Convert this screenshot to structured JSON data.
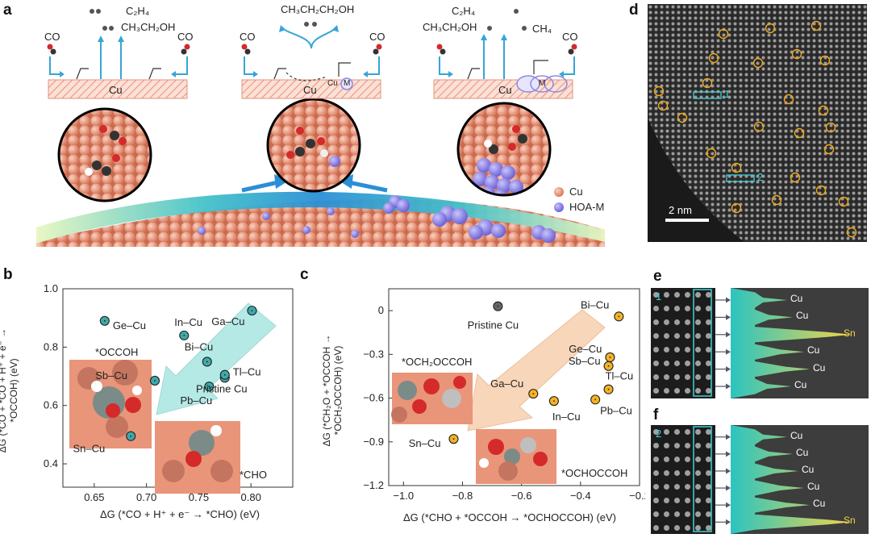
{
  "panel_labels": {
    "a": "a",
    "b": "b",
    "c": "c",
    "d": "d",
    "e": "e",
    "f": "f"
  },
  "panel_a": {
    "left": {
      "products_top": "C₂H₄",
      "products_mid": "CH₃CH₂OH",
      "co_left": "CO",
      "co_right": "CO",
      "surface": "Cu"
    },
    "middle": {
      "product": "CH₃CH₂CH₂OH",
      "co_left": "CO",
      "co_right": "CO",
      "surface": "Cu",
      "site_cu": "Cu",
      "site_m": "M"
    },
    "right": {
      "products_top": "C₂H₄",
      "products_mid": "CH₃CH₂OH",
      "product_ch4": "CH₄",
      "co_left": "CO",
      "co_right": "CO",
      "surface": "Cu",
      "site_m": "M"
    },
    "legend": {
      "cu": "Cu",
      "hoa": "HOA-M"
    },
    "colors": {
      "cu": "#e9957a",
      "hoa": "#8f86e0",
      "arrow": "#36a5d6"
    }
  },
  "panel_b": {
    "xlabel": "ΔG (*CO + H⁺ + e⁻ → *CHO) (eV)",
    "ylabel_line1": "ΔG (*CO + *CO + H⁺ + e⁻ →",
    "ylabel_line2": "*OCCOH) (eV)",
    "label_occoh": "*OCCOH",
    "label_cho": "*CHO",
    "arrow_color": "#a8e6e2"
  },
  "panel_c": {
    "xlabel": "ΔG (*CHO + *OCCOH → *OCHOCCOH) (eV)",
    "ylabel_line1": "ΔG (*CH₂O + *OCCOH →",
    "ylabel_line2": "*OCH₂OCCOH) (eV)",
    "label_och2occoh": "*OCH₂OCCOH",
    "label_ochocc": "*OCHOCCOH",
    "arrow_color": "#f6c9a3"
  },
  "panel_d": {
    "scale_bar": "2 nm",
    "box1": "1",
    "box2": "2"
  },
  "panel_e": {
    "index": "1",
    "labels": [
      "Cu",
      "Cu",
      "Sn",
      "Cu",
      "Cu",
      "Cu"
    ]
  },
  "panel_f": {
    "index": "2",
    "labels": [
      "Cu",
      "Cu",
      "Cu",
      "Cu",
      "Cu",
      "Sn"
    ]
  },
  "chart_data": [
    {
      "type": "scatter",
      "xlabel": "ΔG (*CO + H⁺ + e⁻ → *CHO) (eV)",
      "ylabel": "ΔG (*CO + *CO + H⁺ + e⁻ → *OCCOH) (eV)",
      "xlim": [
        0.62,
        0.84
      ],
      "ylim": [
        0.32,
        1.0
      ],
      "xticks": [
        "0.65",
        "0.70",
        "0.75",
        "0.80"
      ],
      "yticks": [
        "0.4",
        "0.6",
        "0.8",
        "1.0"
      ],
      "marker_color": "#3fa9a9",
      "points": [
        {
          "name": "Ge–Cu",
          "x": 0.66,
          "y": 0.89
        },
        {
          "name": "In–Cu",
          "x": 0.736,
          "y": 0.84
        },
        {
          "name": "Ga–Cu",
          "x": 0.801,
          "y": 0.925
        },
        {
          "name": "Bi–Cu",
          "x": 0.758,
          "y": 0.75
        },
        {
          "name": "Sb–Cu",
          "x": 0.708,
          "y": 0.685
        },
        {
          "name": "Pb–Cu",
          "x": 0.76,
          "y": 0.665
        },
        {
          "name": "Tl–Cu",
          "x": 0.775,
          "y": 0.695
        },
        {
          "name": "Pristine Cu",
          "x": 0.775,
          "y": 0.705
        },
        {
          "name": "Sn–Cu",
          "x": 0.685,
          "y": 0.495
        }
      ]
    },
    {
      "type": "scatter",
      "xlabel": "ΔG (*CHO + *OCCOH → *OCHOCCOH) (eV)",
      "ylabel": "ΔG (*CH₂O + *OCCOH → *OCH₂OCCOH) (eV)",
      "xlim": [
        -1.05,
        -0.2
      ],
      "ylim": [
        -1.2,
        0.15
      ],
      "xticks": [
        "−1.0",
        "−0.8",
        "−0.6",
        "−0.4",
        "−0.2"
      ],
      "yticks": [
        "0",
        "−0.3",
        "−0.6",
        "−0.9",
        "−1.2"
      ],
      "marker_color": "#f5b324",
      "points": [
        {
          "name": "Pristine Cu",
          "x": -0.68,
          "y": 0.03,
          "color": "#666666"
        },
        {
          "name": "Bi–Cu",
          "x": -0.27,
          "y": -0.04
        },
        {
          "name": "Ge–Cu",
          "x": -0.3,
          "y": -0.32
        },
        {
          "name": "Sb–Cu",
          "x": -0.305,
          "y": -0.38
        },
        {
          "name": "Tl–Cu",
          "x": -0.305,
          "y": -0.54
        },
        {
          "name": "Pb–Cu",
          "x": -0.35,
          "y": -0.61
        },
        {
          "name": "Ga–Cu",
          "x": -0.56,
          "y": -0.57
        },
        {
          "name": "In–Cu",
          "x": -0.49,
          "y": -0.62
        },
        {
          "name": "Sn–Cu",
          "x": -0.83,
          "y": -0.88
        }
      ]
    }
  ]
}
